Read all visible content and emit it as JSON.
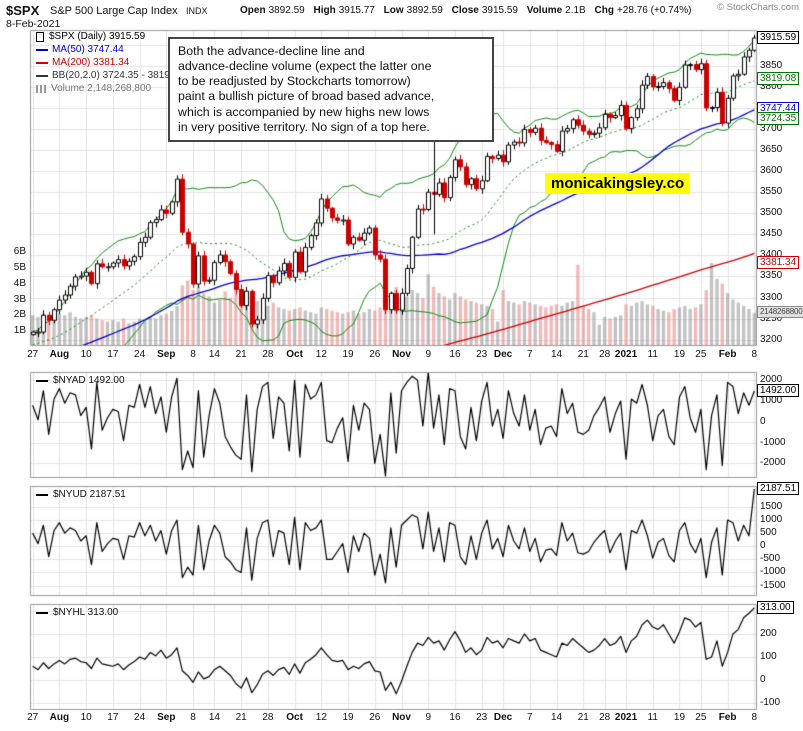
{
  "header": {
    "symbol": "$SPX",
    "name": "S&P 500 Large Cap Index",
    "exchange": "INDX",
    "copyright": "© StockCharts.com",
    "date": "8-Feb-2021",
    "ohlc": [
      {
        "label": "Open",
        "value": "3892.59"
      },
      {
        "label": "High",
        "value": "3915.77"
      },
      {
        "label": "Low",
        "value": "3892.59"
      },
      {
        "label": "Close",
        "value": "3915.59"
      },
      {
        "label": "Volume",
        "value": "2.1B"
      },
      {
        "label": "Chg",
        "value": "+28.76 (+0.74%)"
      }
    ]
  },
  "annotations": {
    "note_text": "Both the advance-decline line and\nadvance-decline volume (expect the latter one\nto be readjusted by Stockcharts tomorrow)\npaint a bullish picture of broad based advance,\nwhich is accompanied by new highs new lows\nin very positive territory. No sign of a top here.",
    "watermark": "monicakingsley.co",
    "vline": {
      "index": 75,
      "price_from": 3670,
      "price_to": 3450
    }
  },
  "colors": {
    "up_candle": "#000000",
    "down_candle": "#cc0000",
    "ma50": "#0000cc",
    "ma200": "#cc0000",
    "bollinger": "#128812",
    "grid": "#e3e3e3",
    "border": "#999999",
    "volume_up": "rgba(136,136,136,0.5)",
    "volume_down": "rgba(226,115,115,0.5)",
    "watermark_bg": "#ffff00"
  },
  "main_callouts": [
    {
      "text": "3915.59",
      "price": 3915.59,
      "color": "#000000"
    },
    {
      "text": "3819.08",
      "price": 3819.08,
      "color": "#007700"
    },
    {
      "text": "3747.44",
      "price": 3747.44,
      "color": "#0000cc"
    },
    {
      "text": "3724.35",
      "price": 3724.35,
      "color": "#007700"
    },
    {
      "text": "3381.34",
      "price": 3381.34,
      "color": "#cc0000"
    },
    {
      "text": "2148268800",
      "volume_b": 2.148,
      "color": "#444444",
      "bg": "#e0e0e0",
      "border": "#8a8a8a",
      "small": true
    }
  ],
  "chart_data": [
    {
      "type": "candlestick",
      "symbol": "$SPX",
      "timeframe": "Daily",
      "last_close": 3915.59,
      "volume_last": "2,148,268,800",
      "indicators": {
        "ma50_last": 3747.44,
        "ma200_last": 3381.34,
        "bb_label": "BB(20,2.0)",
        "bb_upper_last": 3819.08,
        "bb_lower_last": 3724.35
      },
      "legend": [
        {
          "label": "$SPX (Daily) 3915.59",
          "color": "#000000",
          "icon": "candlestick-icon"
        },
        {
          "label": "MA(50) 3747.44",
          "color": "#0000cc",
          "icon": "line"
        },
        {
          "label": "MA(200) 3381.34",
          "color": "#cc0000",
          "icon": "line"
        },
        {
          "label": "BB(20,2.0) 3724.35 - 3819.08",
          "color": "#333333",
          "icon": "line"
        },
        {
          "label": "Volume 2,148,268,800",
          "color": "#777777",
          "icon": "bars-icon"
        }
      ],
      "price_axis": {
        "min": 3185,
        "max": 3935,
        "labels": [
          3850,
          3800,
          3750,
          3700,
          3650,
          3600,
          3550,
          3500,
          3450,
          3400,
          3350,
          3300,
          3250,
          3200
        ],
        "gridlines": [
          3900,
          3850,
          3800,
          3750,
          3700,
          3650,
          3600,
          3550,
          3500,
          3450,
          3400,
          3350,
          3300,
          3250,
          3200
        ]
      },
      "volume_axis": {
        "labels": [
          "6B",
          "5B",
          "4B",
          "3B",
          "2B",
          "1B"
        ],
        "billions": [
          6,
          5,
          4,
          3,
          2,
          1
        ]
      },
      "x_ticks": [
        {
          "label": "27",
          "index": 0,
          "bold": false
        },
        {
          "label": "Aug",
          "index": 5,
          "bold": true
        },
        {
          "label": "10",
          "index": 10,
          "bold": false
        },
        {
          "label": "17",
          "index": 15,
          "bold": false
        },
        {
          "label": "24",
          "index": 20,
          "bold": false
        },
        {
          "label": "Sep",
          "index": 25,
          "bold": true
        },
        {
          "label": "8",
          "index": 30,
          "bold": false
        },
        {
          "label": "14",
          "index": 34,
          "bold": false
        },
        {
          "label": "21",
          "index": 39,
          "bold": false
        },
        {
          "label": "28",
          "index": 44,
          "bold": false
        },
        {
          "label": "Oct",
          "index": 49,
          "bold": true
        },
        {
          "label": "12",
          "index": 54,
          "bold": false
        },
        {
          "label": "19",
          "index": 59,
          "bold": false
        },
        {
          "label": "26",
          "index": 64,
          "bold": false
        },
        {
          "label": "Nov",
          "index": 69,
          "bold": true
        },
        {
          "label": "9",
          "index": 74,
          "bold": false
        },
        {
          "label": "16",
          "index": 79,
          "bold": false
        },
        {
          "label": "23",
          "index": 84,
          "bold": false
        },
        {
          "label": "Dec",
          "index": 88,
          "bold": true
        },
        {
          "label": "7",
          "index": 93,
          "bold": false
        },
        {
          "label": "14",
          "index": 98,
          "bold": false
        },
        {
          "label": "21",
          "index": 103,
          "bold": false
        },
        {
          "label": "28",
          "index": 107,
          "bold": false
        },
        {
          "label": "2021",
          "index": 111,
          "bold": true
        },
        {
          "label": "11",
          "index": 116,
          "bold": false
        },
        {
          "label": "19",
          "index": 121,
          "bold": false
        },
        {
          "label": "25",
          "index": 125,
          "bold": false
        },
        {
          "label": "Feb",
          "index": 130,
          "bold": true
        },
        {
          "label": "8",
          "index": 135,
          "bold": false
        }
      ],
      "closes": [
        3218,
        3218,
        3258,
        3246,
        3271,
        3294,
        3306,
        3327,
        3349,
        3351,
        3360,
        3333,
        3380,
        3373,
        3373,
        3382,
        3390,
        3375,
        3386,
        3397,
        3431,
        3443,
        3478,
        3485,
        3508,
        3500,
        3527,
        3581,
        3455,
        3427,
        3332,
        3399,
        3339,
        3341,
        3383,
        3401,
        3385,
        3357,
        3319,
        3281,
        3315,
        3237,
        3247,
        3298,
        3352,
        3335,
        3363,
        3381,
        3348,
        3408,
        3361,
        3419,
        3447,
        3477,
        3534,
        3512,
        3489,
        3483,
        3484,
        3427,
        3443,
        3436,
        3453,
        3465,
        3401,
        3391,
        3271,
        3310,
        3270,
        3310,
        3369,
        3443,
        3510,
        3509,
        3550,
        3545,
        3572,
        3537,
        3585,
        3627,
        3610,
        3568,
        3582,
        3558,
        3577,
        3635,
        3630,
        3638,
        3622,
        3662,
        3669,
        3667,
        3699,
        3692,
        3702,
        3673,
        3668,
        3663,
        3647,
        3695,
        3701,
        3722,
        3709,
        3695,
        3687,
        3690,
        3703,
        3735,
        3727,
        3732,
        3756,
        3701,
        3727,
        3748,
        3804,
        3825,
        3800,
        3801,
        3810,
        3796,
        3768,
        3799,
        3852,
        3853,
        3841,
        3855,
        3750,
        3751,
        3787,
        3714,
        3773,
        3826,
        3830,
        3871,
        3887,
        3916
      ],
      "volumes_billions": [
        2.0,
        1.9,
        2.1,
        1.8,
        1.9,
        2.1,
        2.0,
        2.2,
        1.9,
        1.8,
        1.9,
        2.0,
        1.8,
        1.7,
        1.6,
        1.7,
        1.6,
        1.8,
        1.5,
        1.6,
        1.8,
        1.7,
        1.9,
        1.8,
        2.0,
        2.1,
        2.3,
        2.6,
        3.9,
        4.2,
        3.6,
        3.8,
        3.4,
        3.2,
        2.8,
        3.0,
        3.5,
        3.1,
        4.0,
        3.0,
        2.7,
        3.2,
        2.9,
        3.1,
        2.6,
        2.8,
        2.5,
        2.4,
        2.3,
        2.4,
        2.5,
        2.3,
        2.2,
        2.1,
        2.5,
        2.4,
        2.3,
        2.2,
        2.1,
        2.2,
        2.3,
        2.1,
        2.2,
        2.4,
        2.3,
        2.5,
        3.4,
        3.2,
        3.8,
        3.0,
        3.2,
        3.6,
        3.4,
        3.1,
        4.6,
        3.8,
        3.4,
        3.2,
        3.0,
        3.4,
        3.2,
        3.0,
        2.9,
        2.8,
        2.7,
        2.6,
        2.4,
        1.6,
        3.6,
        2.9,
        2.8,
        2.7,
        2.9,
        2.8,
        2.7,
        2.6,
        2.5,
        2.6,
        2.7,
        2.6,
        2.8,
        2.9,
        5.2,
        2.6,
        2.4,
        2.2,
        1.4,
        1.9,
        1.8,
        1.9,
        2.0,
        2.7,
        2.6,
        2.8,
        2.9,
        2.7,
        2.6,
        2.4,
        2.3,
        2.2,
        2.4,
        2.5,
        2.6,
        2.4,
        2.5,
        2.7,
        3.6,
        5.3,
        4.3,
        4.0,
        3.4,
        3.0,
        2.8,
        2.6,
        2.4,
        2.148
      ]
    },
    {
      "type": "line",
      "symbol": "$NYAD",
      "legend_label": "$NYAD 1492.00",
      "last": 1492.0,
      "last_label": "1492.00",
      "axis_labels": [
        2000,
        1000,
        0,
        -1000,
        -2000
      ],
      "axis_range": [
        -2700,
        2400
      ],
      "values": [
        800,
        100,
        1500,
        -600,
        1100,
        1600,
        900,
        1400,
        1300,
        300,
        700,
        -1300,
        1900,
        -400,
        200,
        600,
        500,
        -900,
        800,
        700,
        1800,
        700,
        1700,
        400,
        1200,
        -500,
        1200,
        2100,
        -2300,
        -1400,
        -2200,
        1500,
        -1700,
        300,
        1600,
        900,
        -700,
        -1200,
        -1600,
        -1800,
        1300,
        -2400,
        600,
        1700,
        1900,
        -800,
        1200,
        900,
        -1400,
        2000,
        -1700,
        1800,
        1100,
        1300,
        1900,
        -900,
        -1000,
        -300,
        200,
        -1900,
        800,
        -400,
        900,
        600,
        -2000,
        -600,
        -2600,
        1400,
        -1500,
        1500,
        1900,
        2200,
        2000,
        -200,
        2400,
        -300,
        1300,
        -1100,
        1600,
        1500,
        -700,
        -1300,
        700,
        -900,
        1000,
        1900,
        -200,
        600,
        -800,
        1500,
        400,
        -200,
        1300,
        -400,
        600,
        -1100,
        -300,
        -200,
        -700,
        1600,
        400,
        900,
        -500,
        -600,
        -400,
        300,
        700,
        1200,
        -500,
        400,
        1000,
        -1800,
        1100,
        900,
        1800,
        800,
        -900,
        300,
        600,
        -700,
        -1100,
        1200,
        1700,
        200,
        -500,
        600,
        -2300,
        300,
        1300,
        -2100,
        1900,
        1700,
        400,
        1400,
        800,
        1492
      ]
    },
    {
      "type": "line",
      "symbol": "$NYUD",
      "legend_label": "$NYUD 2187.51",
      "last": 2187.51,
      "last_label": "2187.51",
      "axis_labels": [
        1500,
        1000,
        500,
        0,
        -500,
        -1000,
        -1500
      ],
      "axis_range": [
        -1900,
        2300
      ],
      "values": [
        500,
        100,
        800,
        -400,
        600,
        900,
        500,
        700,
        600,
        200,
        400,
        -700,
        900,
        -200,
        100,
        300,
        250,
        -500,
        400,
        350,
        900,
        400,
        800,
        200,
        600,
        -300,
        600,
        1000,
        -1200,
        -800,
        -1100,
        800,
        -900,
        200,
        800,
        500,
        -400,
        -600,
        -900,
        -1000,
        700,
        -1300,
        300,
        900,
        1000,
        -400,
        600,
        500,
        -700,
        1100,
        -900,
        900,
        600,
        700,
        1000,
        -500,
        -500,
        -200,
        100,
        -1000,
        400,
        -200,
        500,
        300,
        -1100,
        -300,
        -1400,
        700,
        -800,
        800,
        1000,
        1200,
        1100,
        -100,
        1300,
        -200,
        700,
        -600,
        900,
        800,
        -400,
        -700,
        400,
        -500,
        500,
        1000,
        -100,
        300,
        -400,
        800,
        200,
        -100,
        700,
        -200,
        300,
        -600,
        -150,
        -100,
        -350,
        900,
        200,
        500,
        -250,
        -300,
        -200,
        150,
        400,
        600,
        -250,
        200,
        500,
        -900,
        600,
        500,
        1000,
        400,
        -450,
        150,
        300,
        -350,
        -600,
        600,
        900,
        100,
        -250,
        300,
        -1200,
        150,
        700,
        -1100,
        1000,
        900,
        200,
        800,
        400,
        2187.51
      ]
    },
    {
      "type": "line",
      "symbol": "$NYHL",
      "legend_label": "$NYHL 313.00",
      "last": 313.0,
      "last_label": "313.00",
      "axis_labels": [
        300,
        200,
        100,
        0,
        -100
      ],
      "axis_range": [
        -130,
        330
      ],
      "values": [
        60,
        45,
        75,
        50,
        70,
        85,
        70,
        90,
        95,
        80,
        75,
        50,
        95,
        70,
        65,
        60,
        70,
        45,
        65,
        80,
        100,
        90,
        120,
        105,
        130,
        95,
        110,
        140,
        40,
        20,
        -10,
        35,
        5,
        15,
        45,
        60,
        40,
        20,
        -15,
        -35,
        10,
        -55,
        -20,
        25,
        40,
        20,
        45,
        55,
        25,
        70,
        30,
        75,
        90,
        110,
        140,
        110,
        85,
        80,
        85,
        45,
        60,
        50,
        70,
        80,
        40,
        35,
        -45,
        -10,
        -60,
        -5,
        60,
        120,
        160,
        150,
        185,
        160,
        170,
        130,
        175,
        210,
        170,
        120,
        140,
        110,
        130,
        185,
        160,
        170,
        140,
        180,
        170,
        160,
        200,
        170,
        180,
        130,
        120,
        110,
        100,
        160,
        150,
        180,
        160,
        140,
        120,
        130,
        150,
        180,
        150,
        160,
        190,
        120,
        170,
        190,
        240,
        260,
        230,
        220,
        240,
        200,
        160,
        210,
        270,
        260,
        230,
        250,
        90,
        100,
        170,
        60,
        120,
        200,
        220,
        270,
        290,
        313
      ]
    }
  ]
}
